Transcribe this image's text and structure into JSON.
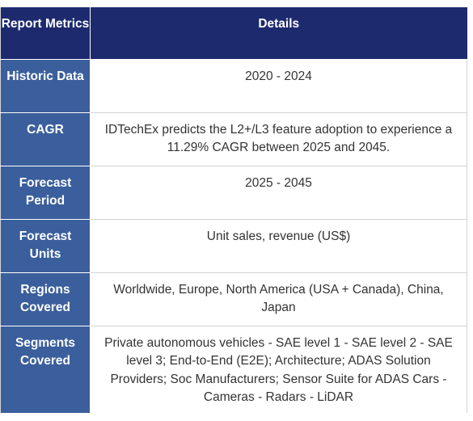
{
  "header": {
    "metric_label": "Report Metrics",
    "details_label": "Details"
  },
  "rows": [
    {
      "metric": "Historic Data",
      "details": "2020 - 2024"
    },
    {
      "metric": "CAGR",
      "details": "IDTechEx predicts the L2+/L3 feature adoption to experience a 11.29% CAGR between 2025 and 2045."
    },
    {
      "metric": "Forecast Period",
      "details": "2025 - 2045"
    },
    {
      "metric": "Forecast Units",
      "details": "Unit sales, revenue (US$)"
    },
    {
      "metric": "Regions Covered",
      "details": "Worldwide, Europe, North America (USA + Canada), China, Japan"
    },
    {
      "metric": "Segments Covered",
      "details": "Private autonomous vehicles - SAE level 1 - SAE level 2 - SAE level 3; End-to-End (E2E); Architecture; ADAS Solution Providers; Soc Manufacturers; Sensor Suite for ADAS Cars - Cameras - Radars - LiDAR"
    }
  ],
  "colors": {
    "header_bg": "#1d2a6e",
    "metric_bg": "#3b5f9c",
    "detail_text": "#333333"
  }
}
